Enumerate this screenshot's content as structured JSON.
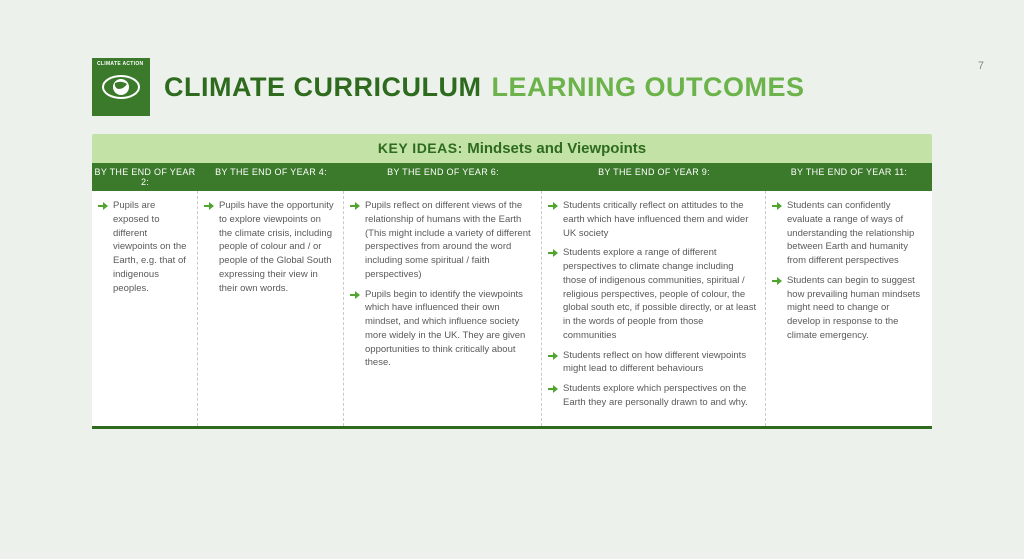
{
  "page_number": "7",
  "badge_label": "CLIMATE ACTION",
  "title_part_a": "CLIMATE CURRICULUM",
  "title_part_b": "LEARNING OUTCOMES",
  "key_ideas_label": "KEY IDEAS:",
  "key_ideas_value": "Mindsets and Viewpoints",
  "colors": {
    "page_bg": "#edf1ec",
    "badge_bg": "#3b7a2a",
    "title_dark": "#2e6b1f",
    "title_light": "#6bb34a",
    "keyideas_bg": "#c3e2a6",
    "header_row_bg": "#3b7a2a",
    "cell_bg": "#ffffff",
    "arrow": "#4fa52f",
    "body_text": "#5a5a5a",
    "divider": "#c9c9c9",
    "bottom_border": "#2e6b1f"
  },
  "columns": [
    {
      "header": "BY THE END OF YEAR 2:",
      "items": [
        "Pupils are exposed to different viewpoints on the Earth, e.g. that of indigenous peoples."
      ]
    },
    {
      "header": "BY THE END OF YEAR 4:",
      "items": [
        "Pupils have the opportunity to explore viewpoints on the climate crisis, including people of colour and / or people of the Global South expressing their view in their own words."
      ]
    },
    {
      "header": "BY THE END OF YEAR 6:",
      "items": [
        "Pupils reflect on different views of the relationship of humans with the Earth (This might include a variety of different perspectives from around the word including some spiritual / faith perspectives)",
        "Pupils begin to identify the viewpoints which have influenced their own mindset, and which influence society more widely in the UK. They are given opportunities to think critically about these."
      ]
    },
    {
      "header": "BY THE END OF YEAR 9:",
      "items": [
        "Students critically reflect on attitudes to the earth which have influenced them and wider UK society",
        "Students explore a range of different perspectives to climate change including those of indigenous communities, spiritual / religious perspectives, people of colour, the global south etc, if possible directly, or at least in the words of people from those communities",
        "Students reflect on how different viewpoints might lead to different behaviours",
        "Students explore which perspectives on the Earth they are personally drawn to and why."
      ]
    },
    {
      "header": "BY THE END OF YEAR 11:",
      "items": [
        "Students can confidently evaluate a range of ways of understanding the relationship between Earth and humanity from different perspectives",
        "Students can begin to suggest how prevailing human mindsets might need to change or develop in response to the climate emergency."
      ]
    }
  ]
}
